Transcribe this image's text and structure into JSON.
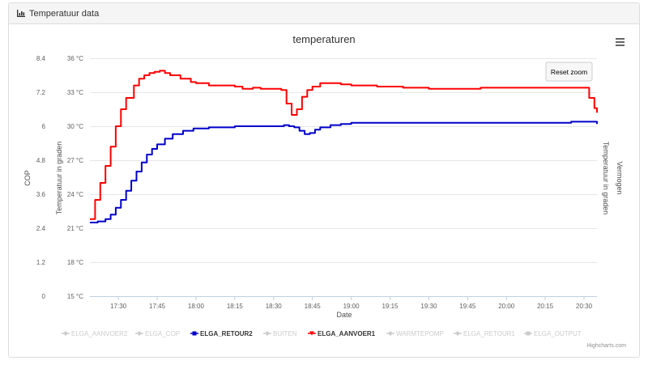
{
  "panel": {
    "title": "Temperatuur data",
    "icon": "bar-chart-icon"
  },
  "chart_data": {
    "type": "line",
    "title": "temperaturen",
    "xlabel": "Date",
    "ylabel_cop": "COP",
    "ylabel_temp_left": "Temperatuur in graden",
    "ylabel_temp_right": "Temperatuur in graden",
    "ylabel_power": "Vermogen",
    "x_ticks": [
      "17:30",
      "17:45",
      "18:00",
      "18:15",
      "18:30",
      "18:45",
      "19:00",
      "19:15",
      "19:30",
      "19:45",
      "20:00",
      "20:15",
      "20:30"
    ],
    "x_range": [
      "17:19",
      "20:35"
    ],
    "y_cop_ticks": [
      "0",
      "1.2",
      "2.4",
      "3.6",
      "4.8",
      "6",
      "7.2",
      "8.4"
    ],
    "y_temp_ticks": [
      "15 °C",
      "18 °C",
      "21 °C",
      "24 °C",
      "27 °C",
      "30 °C",
      "33 °C",
      "36 °C"
    ],
    "y_temp_range": [
      15,
      36
    ],
    "grid": true,
    "reset_zoom_label": "Reset zoom",
    "menu_icon": "hamburger-menu-icon",
    "credits": "Highcharts.com",
    "legend_position": "bottom",
    "legend": [
      {
        "name": "ELGA_AANVOER2",
        "color": "#cccccc",
        "marker": "diamond",
        "visible": false
      },
      {
        "name": "ELGA_COP",
        "color": "#cccccc",
        "marker": "diamond",
        "visible": false
      },
      {
        "name": "ELGA_RETOUR2",
        "color": "#0000cc",
        "marker": "square",
        "visible": true
      },
      {
        "name": "BUITEN",
        "color": "#cccccc",
        "marker": "diamond",
        "visible": false
      },
      {
        "name": "ELGA_AANVOER1",
        "color": "#ff0000",
        "marker": "triangle-down",
        "visible": true
      },
      {
        "name": "WARMTEPOMP",
        "color": "#cccccc",
        "marker": "diamond",
        "visible": false
      },
      {
        "name": "ELGA_RETOUR1",
        "color": "#cccccc",
        "marker": "diamond",
        "visible": false
      },
      {
        "name": "ELGA_OUTPUT",
        "color": "#cccccc",
        "marker": "square",
        "visible": false
      }
    ],
    "series": [
      {
        "name": "ELGA_AANVOER1",
        "color": "#ff0000",
        "x": [
          "17:19",
          "17:21",
          "17:23",
          "17:25",
          "17:27",
          "17:29",
          "17:31",
          "17:33",
          "17:36",
          "17:38",
          "17:40",
          "17:42",
          "17:44",
          "17:46",
          "17:48",
          "17:50",
          "17:54",
          "17:58",
          "18:00",
          "18:05",
          "18:12",
          "18:15",
          "18:18",
          "18:22",
          "18:25",
          "18:29",
          "18:33",
          "18:35",
          "18:37",
          "18:39",
          "18:41",
          "18:43",
          "18:45",
          "18:48",
          "18:52",
          "18:56",
          "19:00",
          "19:10",
          "19:20",
          "19:30",
          "19:40",
          "19:50",
          "20:00",
          "20:10",
          "20:20",
          "20:30",
          "20:32",
          "20:34",
          "20:35"
        ],
        "y": [
          21.8,
          23.5,
          25.0,
          26.5,
          28.2,
          30.0,
          31.5,
          32.5,
          33.6,
          34.2,
          34.5,
          34.7,
          34.8,
          34.9,
          34.7,
          34.5,
          34.2,
          33.9,
          33.8,
          33.6,
          33.6,
          33.5,
          33.3,
          33.4,
          33.3,
          33.3,
          33.2,
          32.0,
          31.0,
          31.5,
          32.6,
          33.2,
          33.5,
          33.8,
          33.8,
          33.7,
          33.6,
          33.5,
          33.4,
          33.3,
          33.3,
          33.4,
          33.4,
          33.4,
          33.4,
          33.4,
          32.5,
          31.6,
          31.2
        ]
      },
      {
        "name": "ELGA_RETOUR2",
        "color": "#0000cc",
        "x": [
          "17:19",
          "17:22",
          "17:25",
          "17:27",
          "17:29",
          "17:31",
          "17:33",
          "17:35",
          "17:37",
          "17:39",
          "17:41",
          "17:43",
          "17:45",
          "17:48",
          "17:51",
          "17:55",
          "17:59",
          "18:05",
          "18:15",
          "18:25",
          "18:30",
          "18:34",
          "18:36",
          "18:38",
          "18:40",
          "18:42",
          "18:44",
          "18:46",
          "18:48",
          "18:52",
          "18:56",
          "19:00",
          "19:15",
          "19:30",
          "19:45",
          "20:00",
          "20:15",
          "20:20",
          "20:25",
          "20:30",
          "20:33",
          "20:35"
        ],
        "y": [
          21.5,
          21.6,
          21.8,
          22.2,
          22.8,
          23.5,
          24.3,
          25.2,
          26.0,
          26.8,
          27.5,
          28.0,
          28.4,
          28.9,
          29.3,
          29.6,
          29.8,
          29.9,
          30.0,
          30.0,
          30.0,
          30.1,
          30.0,
          29.9,
          29.6,
          29.3,
          29.4,
          29.7,
          29.9,
          30.1,
          30.2,
          30.3,
          30.3,
          30.3,
          30.3,
          30.3,
          30.3,
          30.3,
          30.4,
          30.4,
          30.4,
          30.2
        ]
      }
    ]
  }
}
